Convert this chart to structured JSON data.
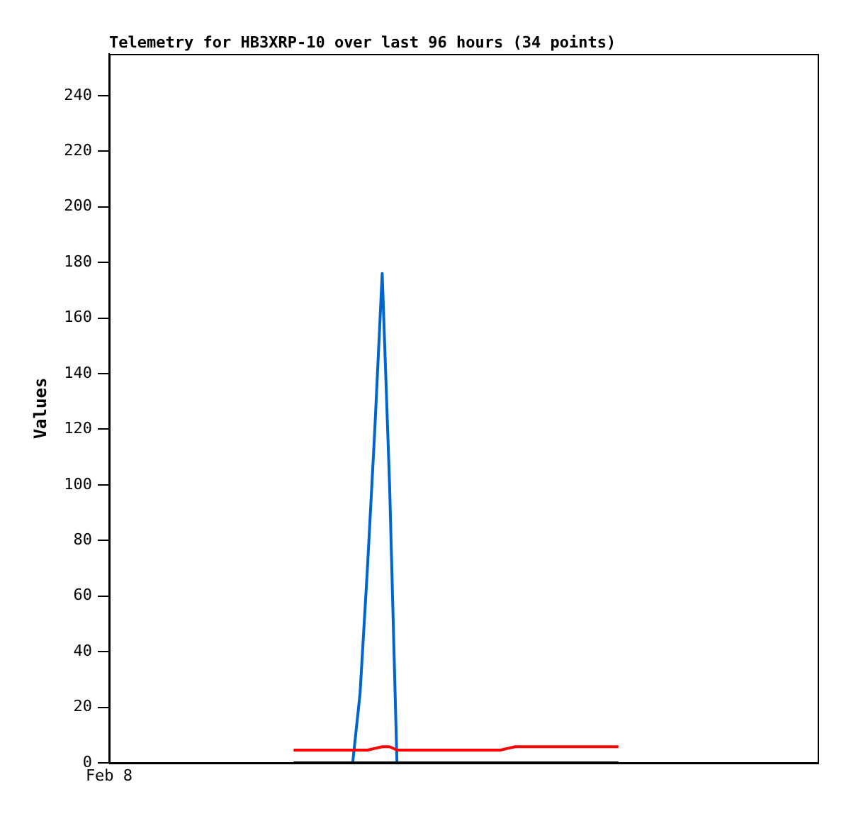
{
  "chart_data": {
    "type": "line",
    "title": "Telemetry for HB3XRP-10 over last 96 hours (34 points)",
    "ylabel": "Values",
    "categories": [
      "Feb 8",
      null,
      null,
      null,
      null,
      null,
      null,
      null,
      null,
      null,
      null,
      null,
      null,
      null,
      null,
      null,
      null,
      null,
      null,
      null,
      null,
      null,
      null,
      null,
      null,
      null,
      null,
      null,
      null,
      null,
      null,
      null,
      null,
      null,
      null,
      null,
      null,
      null,
      null,
      null,
      null,
      null,
      null,
      null,
      null,
      null,
      null,
      null,
      null,
      null,
      null,
      null,
      null,
      null,
      null,
      null,
      null,
      null,
      null,
      null,
      null,
      null,
      null,
      null,
      null,
      null,
      null,
      null,
      null,
      null,
      null,
      null,
      null,
      null,
      null,
      null,
      null,
      null,
      null,
      null,
      null,
      null,
      null,
      null,
      null,
      null,
      null,
      null,
      null,
      null,
      null,
      null,
      null,
      null,
      null,
      null,
      null
    ],
    "ylim": [
      0,
      255
    ],
    "yticks": [
      0,
      20,
      40,
      60,
      80,
      100,
      120,
      140,
      160,
      180,
      200,
      220,
      240
    ],
    "grid": false,
    "legend": false,
    "marker": "none",
    "line_style": "solid",
    "series": [
      {
        "color": "#000000",
        "values": [
          null,
          null,
          null,
          null,
          null,
          null,
          null,
          null,
          null,
          null,
          null,
          null,
          null,
          null,
          null,
          null,
          null,
          null,
          null,
          null,
          null,
          null,
          null,
          null,
          null,
          0,
          0,
          0,
          0,
          0,
          0,
          0,
          0,
          0,
          0,
          0,
          0,
          0,
          0,
          0,
          0,
          0,
          0,
          0,
          0,
          0,
          0,
          0,
          0,
          0,
          0,
          0,
          0,
          0,
          0,
          0,
          0,
          0,
          0,
          0,
          0,
          0,
          0,
          0,
          0,
          0,
          0,
          0,
          0,
          0,
          null,
          null,
          null,
          null,
          null,
          null,
          null,
          null,
          null,
          null,
          null,
          null,
          null,
          null,
          null,
          null,
          null,
          null,
          null,
          null,
          null,
          null,
          null,
          null,
          null,
          null,
          null
        ]
      },
      {
        "color": "#ff0000",
        "values": [
          null,
          null,
          null,
          null,
          null,
          null,
          null,
          null,
          null,
          null,
          null,
          null,
          null,
          null,
          null,
          null,
          null,
          null,
          null,
          null,
          null,
          null,
          null,
          null,
          null,
          4.6,
          4.6,
          4.6,
          4.6,
          4.6,
          4.6,
          4.6,
          4.6,
          4.6,
          4.6,
          4.6,
          5.2,
          5.8,
          5.8,
          4.6,
          4.6,
          4.6,
          4.6,
          4.6,
          4.6,
          4.6,
          4.6,
          4.6,
          4.6,
          4.6,
          4.6,
          4.6,
          4.6,
          4.6,
          5.2,
          5.8,
          5.8,
          5.8,
          5.8,
          5.8,
          5.8,
          5.8,
          5.8,
          5.8,
          5.8,
          5.8,
          5.8,
          5.8,
          5.8,
          5.8,
          null,
          null,
          null,
          null,
          null,
          null,
          null,
          null,
          null,
          null,
          null,
          null,
          null,
          null,
          null,
          null,
          null,
          null,
          null,
          null,
          null,
          null,
          null,
          null,
          null,
          null,
          null
        ]
      },
      {
        "color": "#0066cc",
        "values": [
          null,
          null,
          null,
          null,
          null,
          null,
          null,
          null,
          null,
          null,
          null,
          null,
          null,
          null,
          null,
          null,
          null,
          null,
          null,
          null,
          null,
          null,
          null,
          null,
          null,
          null,
          null,
          null,
          null,
          null,
          null,
          null,
          null,
          0,
          25,
          70,
          120,
          176,
          100,
          0,
          null,
          null,
          null,
          null,
          null,
          null,
          null,
          null,
          null,
          null,
          null,
          null,
          null,
          null,
          null,
          null,
          null,
          null,
          null,
          null,
          null,
          null,
          null,
          null,
          null,
          null,
          null,
          null,
          null,
          null,
          null,
          null,
          null,
          null,
          null,
          null,
          null,
          null,
          null,
          null,
          null,
          null,
          null,
          null,
          null,
          null,
          null,
          null,
          null,
          null,
          null,
          null,
          null,
          null,
          null,
          null,
          null
        ]
      }
    ]
  }
}
